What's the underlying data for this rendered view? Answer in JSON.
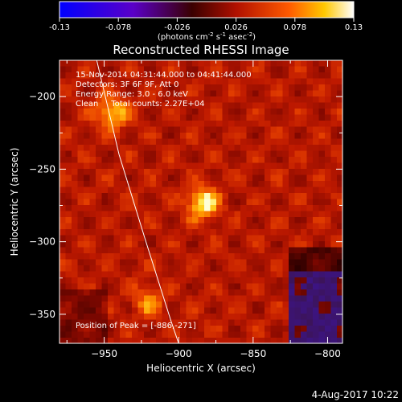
{
  "colorbar": {
    "ticks": [
      "-0.13",
      "-0.078",
      "-0.026",
      "0.026",
      "0.078",
      "0.13"
    ],
    "units_main": "(photons cm",
    "units_exp1": "-2",
    "units_mid": " s",
    "units_exp2": "-1",
    "units_mid2": " asec",
    "units_exp3": "-2",
    "units_end": ")"
  },
  "chart_data": {
    "type": "heatmap",
    "title": "Reconstructed RHESSI Image",
    "xlabel": "Heliocentric X (arcsec)",
    "ylabel": "Heliocentric Y (arcsec)",
    "xlim": [
      -980,
      -790
    ],
    "ylim": [
      -370,
      -175
    ],
    "x_ticks": [
      -950,
      -900,
      -850,
      -800
    ],
    "y_ticks": [
      -200,
      -250,
      -300,
      -350
    ],
    "color_range": [
      -0.13,
      0.13
    ],
    "sources": [
      {
        "x": -886,
        "y": -271,
        "rel_intensity": 1.0
      },
      {
        "x": -947,
        "y": -209,
        "rel_intensity": 0.85
      },
      {
        "x": -922,
        "y": -339,
        "rel_intensity": 0.55
      }
    ],
    "limb_curve": [
      [
        -955,
        -175
      ],
      [
        -940,
        -240
      ],
      [
        -922,
        -300
      ],
      [
        -905,
        -355
      ],
      [
        -900,
        -370
      ]
    ],
    "annotations": {
      "time": "15-Nov-2014 04:31:44.000 to 04:41:44.000",
      "detectors": "Detectors: 3F 6F 9F, Att 0",
      "energy": "Energy Range: 3.0 - 6.0 keV",
      "clean": "Clean     Total counts: 2.27E+04",
      "peak": "Position of Peak = [-886,-271]"
    }
  },
  "footer": {
    "date": "4-Aug-2017 10:22"
  }
}
